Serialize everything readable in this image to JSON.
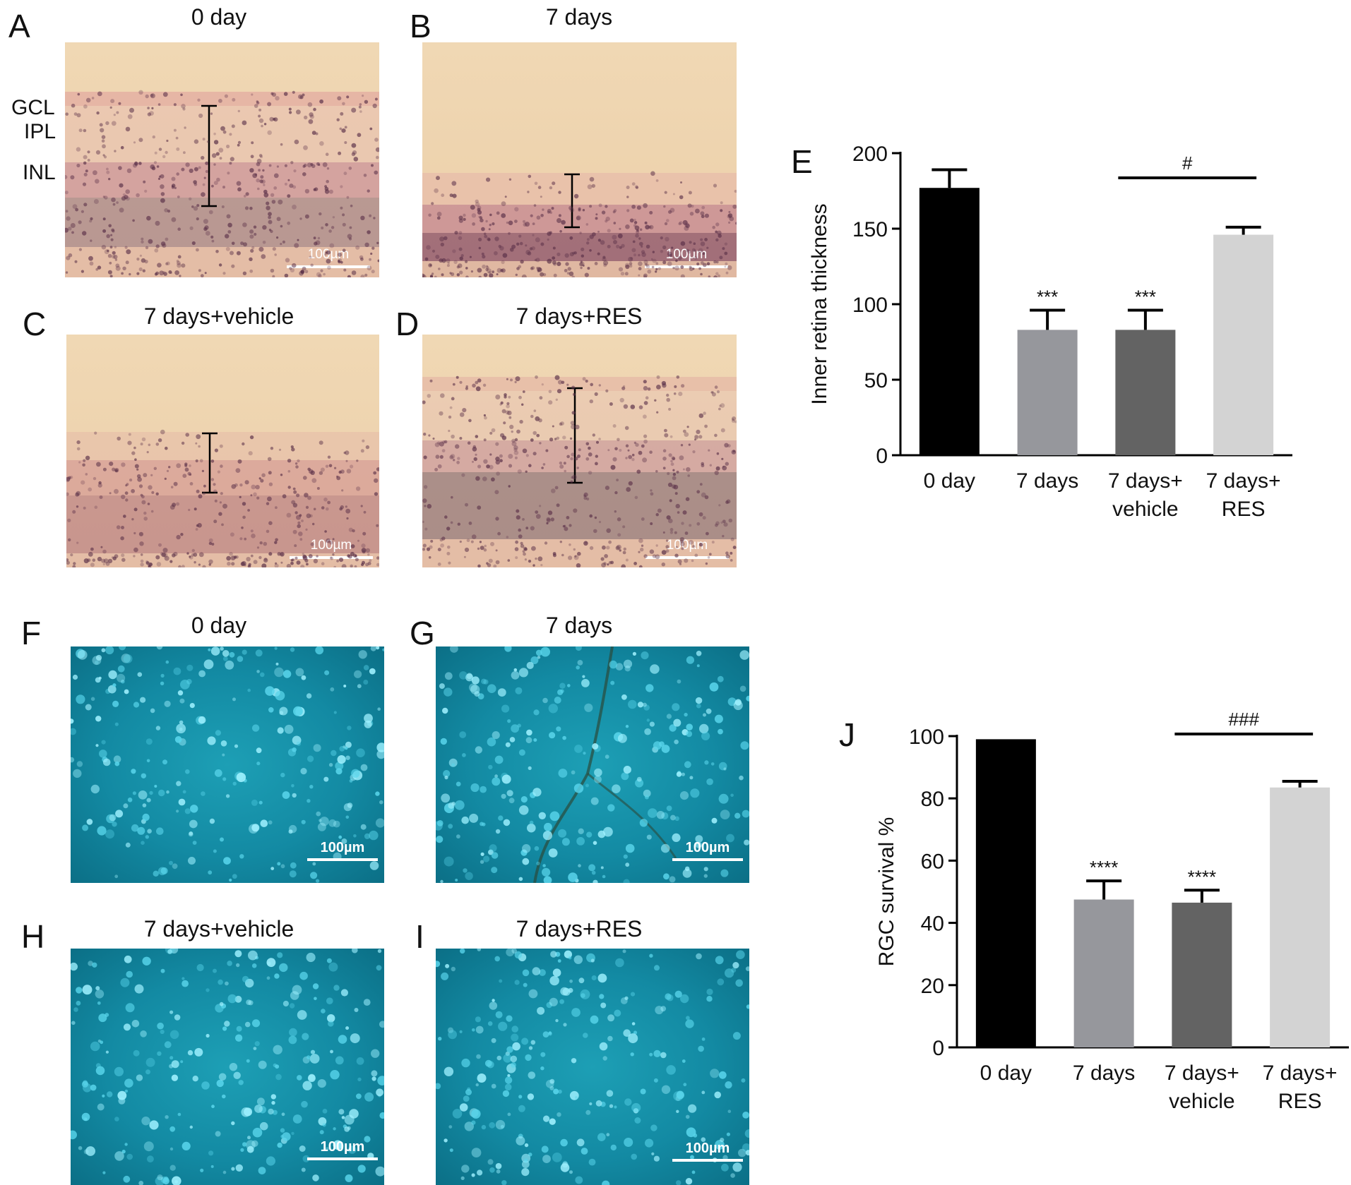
{
  "panels": {
    "A": {
      "letter": "A",
      "title": "0 day",
      "scale": "100µm"
    },
    "B": {
      "letter": "B",
      "title": "7 days",
      "scale": "100µm"
    },
    "C": {
      "letter": "C",
      "title": "7 days+vehicle",
      "scale": "100µm"
    },
    "D": {
      "letter": "D",
      "title": "7 days+RES",
      "scale": "100µm"
    },
    "F": {
      "letter": "F",
      "title": "0 day",
      "scale": "100µm"
    },
    "G": {
      "letter": "G",
      "title": "7 days",
      "scale": "100µm"
    },
    "H": {
      "letter": "H",
      "title": "7 days+vehicle",
      "scale": "100µm"
    },
    "I": {
      "letter": "I",
      "title": "7 days+RES",
      "scale": "100µm"
    }
  },
  "layer_labels": [
    "GCL",
    "IPL",
    "INL"
  ],
  "chart_data": [
    {
      "panel": "E",
      "type": "bar",
      "categories": [
        [
          "0 day"
        ],
        [
          "7 days"
        ],
        [
          "7 days+",
          "vehicle"
        ],
        [
          "7 days+",
          "RES"
        ]
      ],
      "values": [
        177,
        83,
        83,
        146
      ],
      "errors": [
        12,
        13,
        13,
        5
      ],
      "colors": [
        "#000000",
        "#96979c",
        "#636363",
        "#d3d3d3"
      ],
      "ylabel": "Inner retina thickness",
      "ylim": [
        0,
        200
      ],
      "yticks": [
        0,
        50,
        100,
        150,
        200
      ],
      "annotations": [
        "",
        "***",
        "***",
        ""
      ],
      "bracket": {
        "from": 2,
        "to": 3,
        "label": "#"
      }
    },
    {
      "panel": "J",
      "type": "bar",
      "categories": [
        [
          "0 day"
        ],
        [
          "7 days"
        ],
        [
          "7 days+",
          "vehicle"
        ],
        [
          "7 days+",
          "RES"
        ]
      ],
      "values": [
        99,
        47.5,
        46.5,
        83.5
      ],
      "errors": [
        0,
        6,
        4,
        2
      ],
      "colors": [
        "#000000",
        "#96979c",
        "#636363",
        "#d3d3d3"
      ],
      "ylabel": "RGC survival %",
      "ylim": [
        0,
        100
      ],
      "yticks": [
        0,
        20,
        40,
        60,
        80,
        100
      ],
      "annotations": [
        "",
        "****",
        "****",
        ""
      ],
      "bracket": {
        "from": 2,
        "to": 3,
        "label": "###"
      }
    }
  ]
}
